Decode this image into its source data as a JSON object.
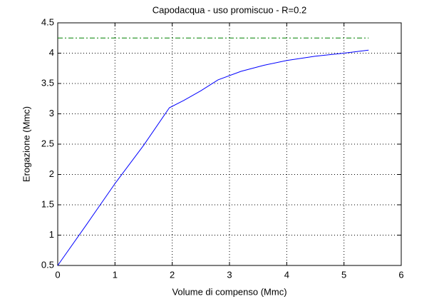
{
  "chart_data": {
    "type": "line",
    "title": "Capodacqua  -  uso promiscuo  -   R=0.2",
    "x_label": "Volume di compenso (Mmc)",
    "y_label": "Erogazione (Mmc)",
    "xlim": [
      0,
      6
    ],
    "xticks": [
      0,
      1,
      2,
      3,
      4,
      5,
      6
    ],
    "ylim": [
      0.5,
      4.5
    ],
    "yticks": [
      0.5,
      1,
      1.5,
      2,
      2.5,
      3,
      3.5,
      4,
      4.5
    ],
    "grid": true,
    "series": [
      {
        "color": "#0000ff",
        "dash": "solid",
        "x": [
          0,
          0.5,
          1,
          1.5,
          1.95,
          2.2,
          2.5,
          2.8,
          3.2,
          3.6,
          4,
          4.5,
          5,
          5.43
        ],
        "values": [
          0.5,
          1.17,
          1.85,
          2.48,
          3.1,
          3.22,
          3.38,
          3.56,
          3.7,
          3.8,
          3.88,
          3.95,
          4.0,
          4.05
        ]
      },
      {
        "color": "#008000",
        "dash": "dashdot",
        "x": [
          0,
          5.43
        ],
        "values": [
          4.25,
          4.25
        ]
      }
    ]
  }
}
